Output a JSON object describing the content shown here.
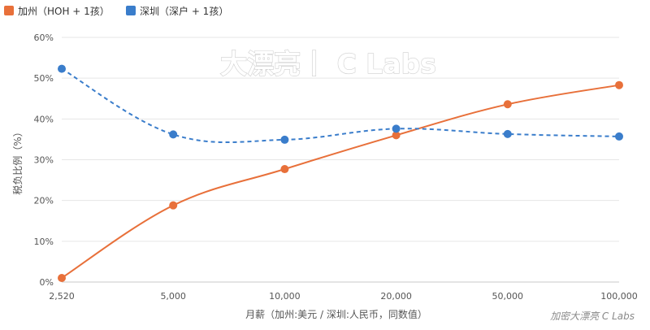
{
  "chart_data": {
    "type": "line",
    "x_scale": "log",
    "categories": [
      "2,520",
      "5,000",
      "10,000",
      "20,000",
      "50,000",
      "100,000"
    ],
    "x": [
      2520,
      5000,
      10000,
      20000,
      50000,
      100000
    ],
    "series": [
      {
        "name": "加州（HOH + 1孩）",
        "color": "#e8703a",
        "line_style": "solid",
        "values": [
          1.0,
          18.8,
          27.7,
          36.0,
          43.6,
          48.3
        ]
      },
      {
        "name": "深圳（深户 + 1孩）",
        "color": "#3a7dcb",
        "line_style": "dashed",
        "values": [
          52.3,
          36.2,
          34.9,
          37.6,
          36.3,
          35.7
        ]
      }
    ],
    "y_ticks": [
      "0%",
      "10%",
      "20%",
      "30%",
      "40%",
      "50%",
      "60%"
    ],
    "ylim": [
      0,
      60
    ],
    "ylabel": "税负比例（%）",
    "xlabel": "月薪（加州:美元 / 深圳:人民币，同数值）",
    "grid": true,
    "legend_position": "top-left"
  },
  "watermark": "大漂亮丨 C Labs",
  "signature": "加密大漂亮 C Labs"
}
